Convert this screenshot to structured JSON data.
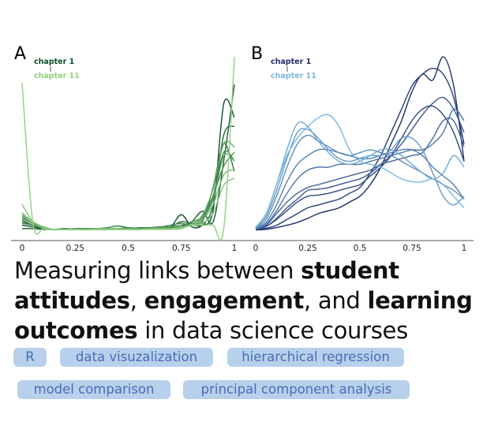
{
  "chart_data": [
    {
      "type": "line",
      "panel_label": "A",
      "legend": {
        "from": "chapter 1",
        "to": "chapter 11",
        "from_color": "#0b4d2a",
        "to_color": "#8fd17f",
        "placement": "top-left"
      },
      "xlim": [
        0,
        1
      ],
      "x_ticks": [
        "0",
        "0.25",
        "0.5",
        "0.75",
        "1"
      ],
      "ylim": [
        0,
        10
      ],
      "grid": false,
      "x": [
        0,
        0.05,
        0.1,
        0.15,
        0.2,
        0.25,
        0.3,
        0.35,
        0.4,
        0.45,
        0.5,
        0.55,
        0.6,
        0.65,
        0.7,
        0.75,
        0.8,
        0.85,
        0.9,
        0.95,
        1
      ],
      "series": [
        {
          "values": [
            0.3,
            0.2,
            0.1,
            0.05,
            0.05,
            0.05,
            0.05,
            0.05,
            0.05,
            0.1,
            0.1,
            0.1,
            0.1,
            0.1,
            0.2,
            0.9,
            0.2,
            0.3,
            1.2,
            7.3,
            6.5
          ]
        },
        {
          "values": [
            0.1,
            0.1,
            0.05,
            0.05,
            0.1,
            0.05,
            0.05,
            0.05,
            0.05,
            0.05,
            0.05,
            0.05,
            0.1,
            0.1,
            0.1,
            0.2,
            0.5,
            1.1,
            0.5,
            4.0,
            8.4
          ]
        },
        {
          "values": [
            0.5,
            0.3,
            0.1,
            0.05,
            0.05,
            0.05,
            0.05,
            0.1,
            0.1,
            0.1,
            0.15,
            0.1,
            0.1,
            0.15,
            0.2,
            0.5,
            0.4,
            0.3,
            1.5,
            5.5,
            6.0
          ]
        },
        {
          "values": [
            0.6,
            0.3,
            0.15,
            0.05,
            0.05,
            0.05,
            0.1,
            0.1,
            0.1,
            0.1,
            0.1,
            0.15,
            0.15,
            0.2,
            0.15,
            0.3,
            0.3,
            0.5,
            2.5,
            5.0,
            3.4
          ]
        },
        {
          "values": [
            0.4,
            0.3,
            0.1,
            0.05,
            0.05,
            0.1,
            0.1,
            0.1,
            0.15,
            0.25,
            0.15,
            0.1,
            0.15,
            0.2,
            0.3,
            0.4,
            0.3,
            0.6,
            2.0,
            4.5,
            4.0
          ]
        },
        {
          "values": [
            0.7,
            0.4,
            0.15,
            0.05,
            0.05,
            0.05,
            0.1,
            0.1,
            0.1,
            0.1,
            0.1,
            0.1,
            0.1,
            0.15,
            0.2,
            0.3,
            0.5,
            0.8,
            2.0,
            3.7,
            4.5
          ]
        },
        {
          "values": [
            0.8,
            0.4,
            0.2,
            0.05,
            0.05,
            0.05,
            0.05,
            0.1,
            0.1,
            0.1,
            0.1,
            0.1,
            0.1,
            0.2,
            0.2,
            0.2,
            0.4,
            0.7,
            1.8,
            4.3,
            4.0
          ]
        },
        {
          "values": [
            0.9,
            0.4,
            0.15,
            0.05,
            0.05,
            0.05,
            0.05,
            0.05,
            0.1,
            0.1,
            0.1,
            0.05,
            0.1,
            0.1,
            0.1,
            0.2,
            0.3,
            0.9,
            2.4,
            5.0,
            4.8
          ]
        },
        {
          "values": [
            1.0,
            0.5,
            0.2,
            0.05,
            0.05,
            0.05,
            0.05,
            0.1,
            0.1,
            0.1,
            0.05,
            0.05,
            0.1,
            0.1,
            0.1,
            0.15,
            0.3,
            0.6,
            1.5,
            3.2,
            3.5
          ]
        },
        {
          "values": [
            1.5,
            0.5,
            0.15,
            0.05,
            0.05,
            0.05,
            0.05,
            0.05,
            0.05,
            0.05,
            0.05,
            0.05,
            0.05,
            0.1,
            0.1,
            0.15,
            0.3,
            0.4,
            1.0,
            2.6,
            3.0
          ]
        },
        {
          "values": [
            8.5,
            0.5,
            0.1,
            0.05,
            0.05,
            0.05,
            0.05,
            0.05,
            0.05,
            0.05,
            0.05,
            0.05,
            0.05,
            0.05,
            0.05,
            0.1,
            0.3,
            0.3,
            0.3,
            0.1,
            10.0
          ]
        }
      ]
    },
    {
      "type": "line",
      "panel_label": "B",
      "legend": {
        "from": "chapter 1",
        "to": "chapter 11",
        "from_color": "#1f2d6b",
        "to_color": "#7ab8e0",
        "placement": "top-left"
      },
      "xlim": [
        0,
        1
      ],
      "x_ticks": [
        "0",
        "0.25",
        "0.5",
        "0.75",
        "1"
      ],
      "ylim": [
        0,
        3
      ],
      "grid": false,
      "x": [
        0,
        0.05,
        0.1,
        0.15,
        0.2,
        0.25,
        0.3,
        0.35,
        0.4,
        0.45,
        0.5,
        0.55,
        0.6,
        0.65,
        0.7,
        0.75,
        0.8,
        0.85,
        0.9,
        0.95,
        1
      ],
      "series": [
        {
          "values": [
            0.02,
            0.03,
            0.06,
            0.1,
            0.15,
            0.22,
            0.3,
            0.35,
            0.4,
            0.5,
            0.6,
            0.8,
            1.1,
            1.5,
            1.9,
            2.4,
            2.7,
            2.6,
            3.0,
            2.5,
            1.2
          ]
        },
        {
          "values": [
            0.03,
            0.05,
            0.1,
            0.2,
            0.3,
            0.4,
            0.45,
            0.5,
            0.55,
            0.65,
            0.75,
            1.0,
            1.3,
            1.7,
            2.1,
            2.5,
            2.7,
            2.8,
            2.7,
            2.3,
            1.5
          ]
        },
        {
          "values": [
            0.03,
            0.08,
            0.2,
            0.35,
            0.5,
            0.6,
            0.62,
            0.65,
            0.7,
            0.75,
            0.8,
            0.95,
            1.1,
            1.3,
            1.6,
            1.9,
            2.1,
            2.15,
            2.0,
            1.7,
            1.2
          ]
        },
        {
          "values": [
            0.03,
            0.08,
            0.22,
            0.4,
            0.55,
            0.7,
            0.72,
            0.75,
            0.8,
            0.85,
            0.9,
            1.0,
            1.15,
            1.3,
            1.5,
            1.75,
            2.0,
            2.2,
            2.3,
            2.1,
            1.7
          ]
        },
        {
          "values": [
            0.04,
            0.1,
            0.3,
            0.5,
            0.65,
            0.75,
            0.8,
            0.85,
            0.9,
            0.95,
            1.0,
            1.05,
            1.15,
            1.2,
            1.25,
            1.3,
            1.35,
            1.6,
            1.9,
            1.9,
            1.45
          ]
        },
        {
          "values": [
            0.04,
            0.12,
            0.35,
            0.65,
            0.9,
            1.05,
            1.1,
            1.1,
            1.15,
            1.15,
            1.15,
            1.2,
            1.25,
            1.3,
            1.35,
            1.4,
            1.4,
            1.5,
            1.7,
            2.1,
            1.9
          ]
        },
        {
          "values": [
            0.05,
            0.15,
            0.45,
            0.85,
            1.15,
            1.3,
            1.4,
            1.4,
            1.35,
            1.3,
            1.25,
            1.25,
            1.3,
            1.35,
            1.4,
            1.4,
            1.3,
            1.1,
            0.95,
            0.8,
            0.55
          ]
        },
        {
          "values": [
            0.05,
            0.2,
            0.6,
            1.1,
            1.5,
            1.65,
            1.55,
            1.45,
            1.35,
            1.3,
            1.35,
            1.4,
            1.35,
            1.3,
            1.2,
            1.1,
            1.0,
            0.9,
            0.8,
            0.7,
            0.55
          ]
        },
        {
          "values": [
            0.06,
            0.25,
            0.7,
            1.25,
            1.7,
            1.75,
            1.6,
            1.4,
            1.25,
            1.2,
            1.25,
            1.3,
            1.3,
            1.4,
            1.6,
            1.6,
            1.4,
            1.0,
            0.6,
            0.45,
            0.6
          ]
        },
        {
          "values": [
            0.06,
            0.3,
            0.8,
            1.4,
            1.85,
            1.8,
            1.55,
            1.35,
            1.2,
            1.15,
            1.2,
            1.3,
            1.4,
            1.4,
            1.3,
            1.15,
            1.0,
            0.9,
            1.0,
            1.3,
            1.1
          ]
        },
        {
          "values": [
            0.07,
            0.3,
            0.8,
            1.3,
            1.6,
            1.8,
            1.95,
            2.0,
            1.8,
            1.4,
            1.2,
            1.15,
            1.1,
            1.0,
            0.9,
            0.85,
            0.85,
            0.9,
            0.8,
            0.6,
            0.4
          ]
        }
      ]
    }
  ],
  "title": {
    "segments": [
      {
        "text": "Measuring links between ",
        "bold": false
      },
      {
        "text": "student attitudes",
        "bold": true
      },
      {
        "text": ", ",
        "bold": false
      },
      {
        "text": "engagement",
        "bold": true
      },
      {
        "text": ", and ",
        "bold": false
      },
      {
        "text": "learning outcomes",
        "bold": true
      },
      {
        "text": " in data science courses",
        "bold": false
      }
    ]
  },
  "tags": [
    "R",
    "data visuzalization",
    "hierarchical regression",
    "model comparison",
    "principal component analysis"
  ],
  "colors": {
    "tag_bg": "#b7d0ec",
    "tag_text": "#4a6db5"
  }
}
